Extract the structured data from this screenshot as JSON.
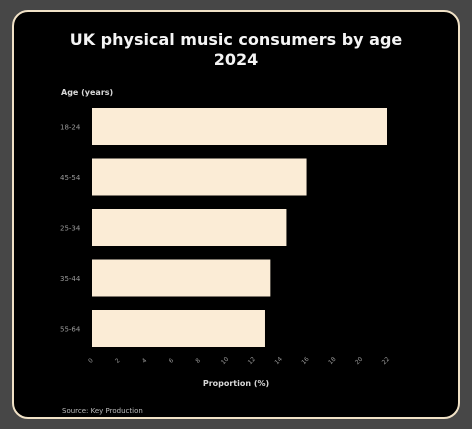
{
  "chart_data": {
    "type": "bar",
    "orientation": "horizontal",
    "title": "UK physical music consumers by age",
    "subtitle": "2024",
    "ylabel": "Age (years)",
    "xlabel": "Proportion (%)",
    "source": "Source: Key Production",
    "categories": [
      "18-24",
      "45-54",
      "25-34",
      "35-44",
      "55-64"
    ],
    "values": [
      22.0,
      16.0,
      14.5,
      13.3,
      12.9
    ],
    "x_ticks": [
      0,
      2,
      4,
      6,
      8,
      10,
      12,
      14,
      16,
      18,
      20,
      22
    ],
    "xlim": [
      0,
      22
    ],
    "grid": false,
    "legend": "none",
    "colors": {
      "background": "#000000",
      "bar": "#fbecd6",
      "border": "#f1e2c7",
      "text": "#f4f4f4",
      "muted": "#9a9a9a"
    }
  }
}
